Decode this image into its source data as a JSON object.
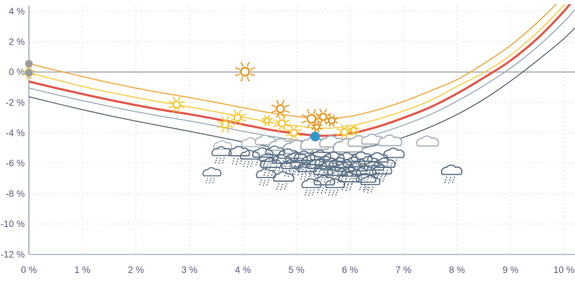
{
  "chart_data": {
    "type": "line",
    "title": "",
    "xlabel": "",
    "ylabel": "",
    "x_axis": {
      "tick_values": [
        0,
        1,
        2,
        3,
        4,
        5,
        6,
        7,
        8,
        9,
        10
      ],
      "tick_labels": [
        "0 %",
        "1 %",
        "2 %",
        "3 %",
        "4 %",
        "5 %",
        "6 %",
        "7 %",
        "8 %",
        "9 %",
        "10 %"
      ],
      "range": [
        0,
        10.2
      ]
    },
    "y_axis": {
      "tick_values": [
        4,
        2,
        0,
        -2,
        -4,
        -6,
        -8,
        -10,
        -12
      ],
      "tick_labels": [
        "4 %",
        "2 %",
        "0 %",
        "-2 %",
        "-4 %",
        "-6 %",
        "-8 %",
        "-10 %",
        "-12 %"
      ],
      "range": [
        -12,
        4.8
      ]
    },
    "grid": {
      "h_lines": [
        4,
        2,
        -2,
        -4,
        -6,
        -8,
        -10
      ],
      "v_lines": [
        1,
        2,
        3,
        4,
        5,
        6,
        7,
        8,
        9,
        10
      ],
      "zero_line": 0,
      "dash_color": "#E5E6E8",
      "zero_color": "#8C8F93",
      "y_axis_color": "#9CA3AB",
      "x_axis_color": "#ADB3B9",
      "label_color": "#565C7A"
    },
    "x_samples": [
      0,
      0.5,
      1,
      1.5,
      2,
      2.5,
      3,
      3.5,
      4,
      4.5,
      5,
      5.5,
      6,
      6.5,
      7,
      7.5,
      8,
      8.5,
      9,
      9.5,
      10,
      10.2
    ],
    "series": [
      {
        "name": "dark-gray-curve",
        "color": "#53646F",
        "width": 1.4,
        "y": [
          -1.63,
          -2.06,
          -2.48,
          -2.87,
          -3.23,
          -3.57,
          -3.9,
          -4.25,
          -4.6,
          -4.92,
          -5.15,
          -5.3,
          -5.18,
          -4.8,
          -4.3,
          -3.62,
          -2.8,
          -1.8,
          -0.6,
          0.75,
          2.2,
          2.9
        ]
      },
      {
        "name": "blue-gray-curve",
        "color": "#93A6B2",
        "width": 1.4,
        "y": [
          -1.05,
          -1.48,
          -1.88,
          -2.26,
          -2.61,
          -2.93,
          -3.22,
          -3.55,
          -3.9,
          -4.22,
          -4.47,
          -4.62,
          -4.48,
          -4.08,
          -3.5,
          -2.8,
          -1.92,
          -0.9,
          0.25,
          1.65,
          3.3,
          4.1
        ]
      },
      {
        "name": "red-curve",
        "color": "#E2574B",
        "width": 3.2,
        "y": [
          -0.63,
          -1.05,
          -1.45,
          -1.83,
          -2.18,
          -2.5,
          -2.78,
          -3.1,
          -3.45,
          -3.8,
          -4.05,
          -4.2,
          -4.05,
          -3.62,
          -3.02,
          -2.32,
          -1.42,
          -0.38,
          0.75,
          2.2,
          4.0,
          4.9
        ]
      },
      {
        "name": "yellow-curve",
        "color": "#F8CE46",
        "width": 1.6,
        "y": [
          -0.05,
          -0.5,
          -0.95,
          -1.33,
          -1.68,
          -2.0,
          -2.3,
          -2.62,
          -2.97,
          -3.3,
          -3.55,
          -3.7,
          -3.55,
          -3.12,
          -2.57,
          -1.88,
          -0.95,
          -0.05,
          1.1,
          2.6,
          4.4,
          5.25
        ]
      },
      {
        "name": "orange-curve",
        "color": "#F0A73B",
        "width": 1.6,
        "y": [
          0.55,
          0.12,
          -0.3,
          -0.7,
          -1.06,
          -1.38,
          -1.68,
          -2.0,
          -2.35,
          -2.68,
          -2.92,
          -3.06,
          -2.92,
          -2.5,
          -1.94,
          -1.25,
          -0.5,
          0.55,
          1.75,
          3.25,
          5.0,
          5.85
        ]
      }
    ],
    "markers": {
      "sun_format": "[x,y,size,tone]",
      "suns": [
        [
          0.0,
          -0.05,
          8,
          "yellow"
        ],
        [
          2.76,
          -2.15,
          9,
          "yellow"
        ],
        [
          4.04,
          0.02,
          11,
          "orange"
        ],
        [
          3.67,
          -3.45,
          9,
          "yellow"
        ],
        [
          3.9,
          -3.0,
          9,
          "yellow"
        ],
        [
          4.7,
          -2.42,
          10,
          "orange"
        ],
        [
          4.45,
          -3.2,
          7,
          "yellow"
        ],
        [
          4.73,
          -3.38,
          9,
          "yellow"
        ],
        [
          4.95,
          -4.0,
          9,
          "yellow"
        ],
        [
          5.28,
          -3.08,
          11,
          "orange"
        ],
        [
          5.5,
          -2.95,
          9,
          "orange"
        ],
        [
          5.66,
          -3.2,
          8,
          "orange"
        ],
        [
          5.38,
          -3.62,
          7,
          "orange"
        ],
        [
          5.9,
          -3.95,
          9,
          "yellow"
        ],
        [
          6.07,
          -3.82,
          7,
          "yellow"
        ]
      ],
      "cloud_format": "[x,y,scale]",
      "clouds": [
        [
          3.62,
          -4.78,
          0.7
        ],
        [
          4.15,
          -4.6,
          0.75
        ],
        [
          4.42,
          -4.45,
          0.8
        ],
        [
          4.72,
          -4.75,
          1.0
        ],
        [
          5.02,
          -4.9,
          1.15
        ],
        [
          5.34,
          -4.65,
          1.1
        ],
        [
          5.66,
          -4.55,
          0.95
        ],
        [
          5.96,
          -4.8,
          1.15
        ],
        [
          6.18,
          -4.52,
          0.9
        ],
        [
          6.42,
          -4.4,
          0.85
        ],
        [
          6.75,
          -4.48,
          0.9
        ],
        [
          7.45,
          -4.52,
          0.85
        ]
      ],
      "rain_clouds": [
        [
          3.42,
          -6.55,
          0.7
        ],
        [
          3.6,
          -5.19,
          0.75
        ],
        [
          3.93,
          -5.19,
          0.8
        ],
        [
          4.13,
          -5.42,
          0.75
        ],
        [
          4.37,
          -5.28,
          0.8
        ],
        [
          4.48,
          -5.6,
          0.7
        ],
        [
          4.6,
          -5.15,
          0.75
        ],
        [
          4.52,
          -5.95,
          0.8
        ],
        [
          4.72,
          -5.7,
          0.75
        ],
        [
          4.85,
          -5.35,
          0.8
        ],
        [
          4.9,
          -6.05,
          0.75
        ],
        [
          5.0,
          -5.6,
          0.85
        ],
        [
          5.08,
          -5.95,
          0.75
        ],
        [
          5.15,
          -5.5,
          0.8
        ],
        [
          5.2,
          -6.25,
          0.75
        ],
        [
          5.3,
          -5.75,
          0.85
        ],
        [
          5.38,
          -6.05,
          0.75
        ],
        [
          5.45,
          -5.45,
          0.8
        ],
        [
          5.5,
          -6.45,
          0.75
        ],
        [
          5.55,
          -5.85,
          0.85
        ],
        [
          5.62,
          -6.15,
          0.75
        ],
        [
          5.7,
          -5.55,
          0.8
        ],
        [
          5.75,
          -6.5,
          0.75
        ],
        [
          5.82,
          -5.95,
          0.85
        ],
        [
          5.9,
          -6.25,
          0.75
        ],
        [
          5.95,
          -5.6,
          0.8
        ],
        [
          6.02,
          -6.55,
          0.75
        ],
        [
          6.08,
          -5.9,
          0.85
        ],
        [
          6.15,
          -6.2,
          0.75
        ],
        [
          6.22,
          -5.55,
          0.8
        ],
        [
          6.3,
          -6.45,
          0.75
        ],
        [
          6.35,
          -5.85,
          0.8
        ],
        [
          6.45,
          -6.15,
          0.75
        ],
        [
          6.52,
          -5.6,
          0.8
        ],
        [
          6.6,
          -6.4,
          0.75
        ],
        [
          6.65,
          -5.95,
          0.8
        ],
        [
          4.43,
          -6.64,
          0.75
        ],
        [
          4.76,
          -6.86,
          0.8
        ],
        [
          5.28,
          -7.3,
          0.75
        ],
        [
          5.52,
          -7.1,
          0.8
        ],
        [
          5.72,
          -7.3,
          0.75
        ],
        [
          5.98,
          -6.9,
          0.8
        ],
        [
          6.3,
          -6.95,
          0.75
        ],
        [
          6.38,
          -7.1,
          0.75
        ],
        [
          6.82,
          -5.3,
          0.8
        ],
        [
          7.9,
          -6.42,
          0.8
        ]
      ],
      "gray_dots": [
        [
          0,
          0.55
        ],
        [
          0,
          -0.05
        ]
      ],
      "blue_dot": [
        5.35,
        -4.25
      ]
    },
    "colors": {
      "sun_yellow": "#F5C62E",
      "sun_orange": "#E8951D",
      "cloud_white_stroke": "#ACB6BF",
      "cloud_white_fill": "#FFFFFF",
      "rain_cloud": "#5A7084",
      "gray_dot": "#9A9A9C",
      "blue_dot": "#2F97CE"
    }
  }
}
